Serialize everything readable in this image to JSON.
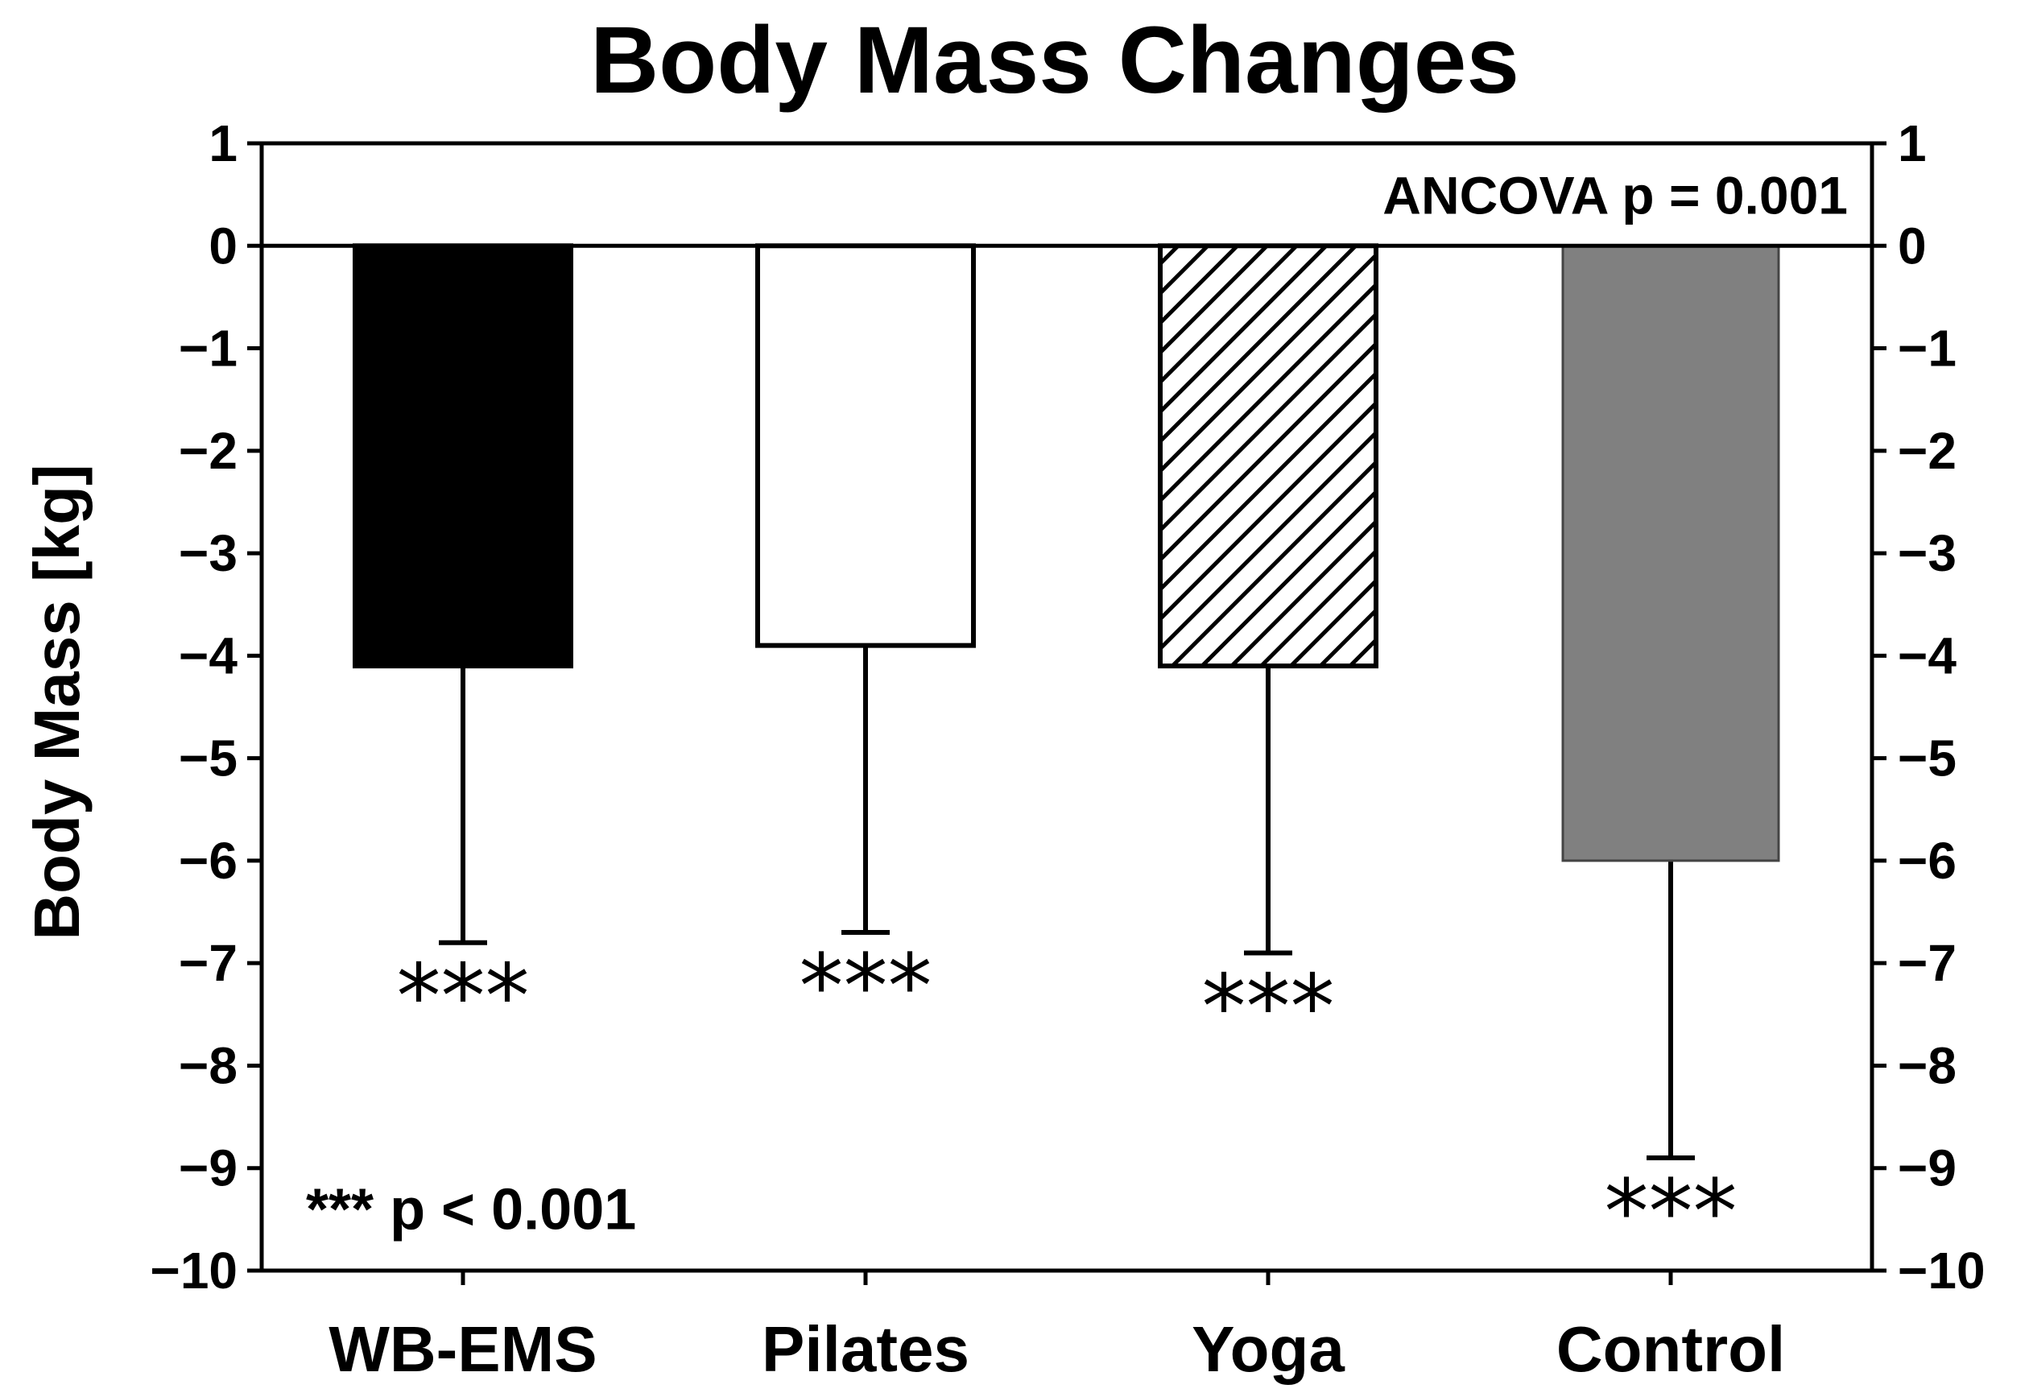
{
  "chart_data": {
    "type": "bar",
    "title": "Body Mass Changes",
    "ylabel": "Body Mass [kg]",
    "xlabel": "",
    "categories": [
      "WB-EMS",
      "Pilates",
      "Yoga",
      "Control"
    ],
    "values": [
      -4.1,
      -3.9,
      -4.1,
      -6.0
    ],
    "error_lower": [
      -6.8,
      -6.7,
      -6.9,
      -8.9
    ],
    "significance": [
      "***",
      "***",
      "***",
      "***"
    ],
    "bar_styles": [
      "solid-black",
      "white",
      "diagonal-hatch",
      "solid-gray"
    ],
    "colors": {
      "black": "#000000",
      "white": "#ffffff",
      "gray": "#808080"
    },
    "ylim": [
      -10,
      1
    ],
    "yticks": [
      1,
      0,
      -1,
      -2,
      -3,
      -4,
      -5,
      -6,
      -7,
      -8,
      -9,
      -10
    ],
    "ytick_labels": [
      "1",
      "0",
      "−1",
      "−2",
      "−3",
      "−4",
      "−5",
      "−6",
      "−7",
      "−8",
      "−9",
      "−10"
    ],
    "right_axis_mirrored": true,
    "grid": false,
    "annotations": {
      "test": "ANCOVA p = 0.001",
      "legend_note": "*** p < 0.001"
    }
  }
}
